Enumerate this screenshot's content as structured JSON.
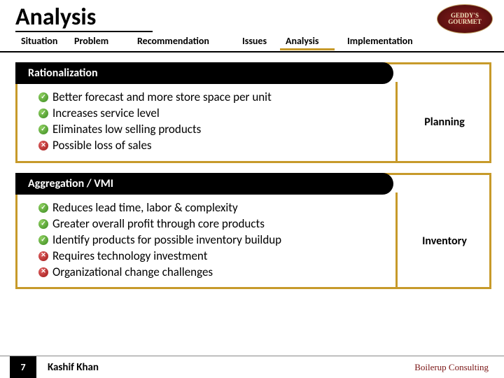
{
  "title": "Analysis",
  "logo": {
    "line1": "GEDDY'S",
    "line2": "GOURMET"
  },
  "breadcrumb": {
    "situation": "Situation",
    "problem": "Problem",
    "recommendation": "Recommendation",
    "issues": "Issues",
    "analysis": "Analysis",
    "implementation": "Implementation"
  },
  "colors": {
    "accent": "#c79a2a",
    "pos_icon": "#5aa52e",
    "neg_icon": "#b82020",
    "company": "#7a1515"
  },
  "blocks": [
    {
      "header": "Rationalization",
      "side": "Planning",
      "items": [
        {
          "type": "pos",
          "text": "Better forecast and more store space per unit"
        },
        {
          "type": "pos",
          "text": "Increases service level"
        },
        {
          "type": "pos",
          "text": "Eliminates low selling products"
        },
        {
          "type": "neg",
          "text": "Possible loss of sales"
        }
      ]
    },
    {
      "header": "Aggregation / VMI",
      "side": "Inventory",
      "items": [
        {
          "type": "pos",
          "text": "Reduces lead time, labor & complexity"
        },
        {
          "type": "pos",
          "text": "Greater overall profit through core products"
        },
        {
          "type": "pos",
          "text": "Identify products for possible inventory buildup"
        },
        {
          "type": "neg",
          "text": "Requires technology investment"
        },
        {
          "type": "neg",
          "text": "Organizational change challenges"
        }
      ]
    }
  ],
  "footer": {
    "page": "7",
    "author": "Kashif Khan",
    "company": "Boilerup Consulting"
  }
}
